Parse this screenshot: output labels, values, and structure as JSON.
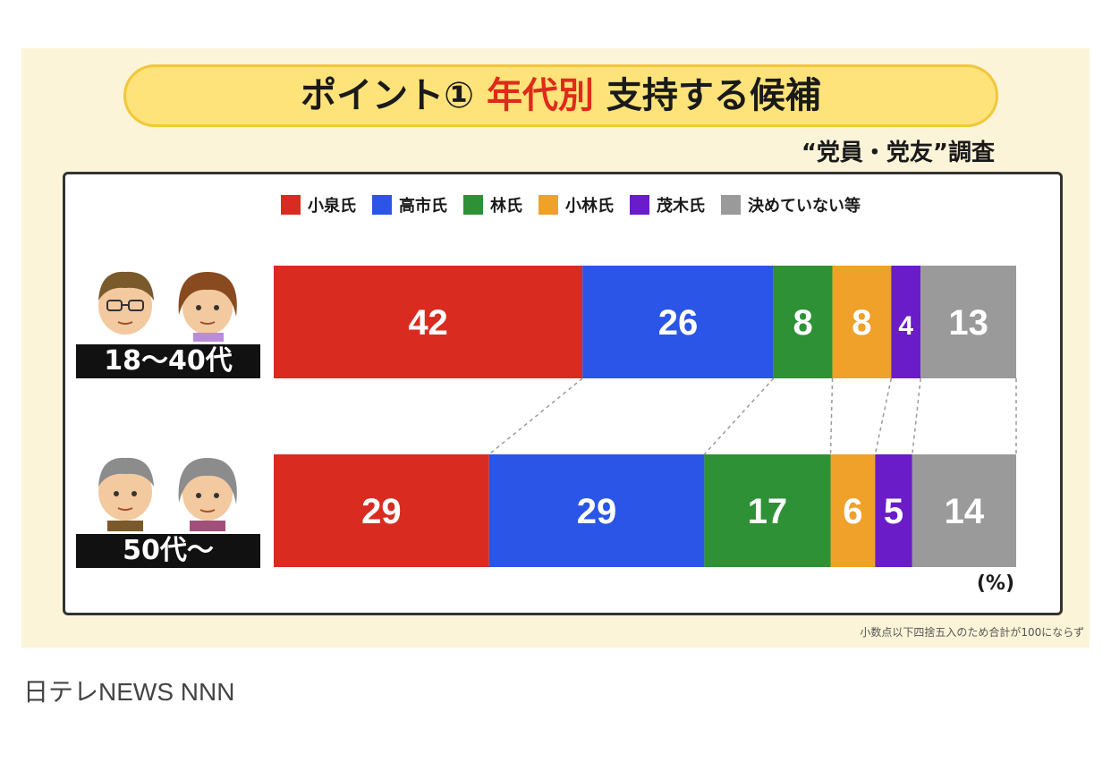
{
  "title": {
    "part1": "ポイント①",
    "highlight": "年代別",
    "part2": "支持する候補"
  },
  "subtitle": "“党員・党友”調査",
  "unit": "(%)",
  "footnote": "小数点以下四捨五入のため合計が100にならず",
  "caption": "日テレNEWS NNN",
  "chart_data": {
    "type": "bar",
    "orientation": "horizontal-stacked",
    "categories": [
      "18〜40代",
      "50代〜"
    ],
    "series": [
      {
        "name": "小泉氏",
        "color": "#d92b1f",
        "values": [
          42,
          29
        ]
      },
      {
        "name": "高市氏",
        "color": "#2b55e6",
        "values": [
          26,
          29
        ]
      },
      {
        "name": "林氏",
        "color": "#2e9135",
        "values": [
          8,
          17
        ]
      },
      {
        "name": "小林氏",
        "color": "#f0a12a",
        "values": [
          8,
          6
        ]
      },
      {
        "name": "茂木氏",
        "color": "#6a1cc8",
        "values": [
          4,
          5
        ]
      },
      {
        "name": "決めていない等",
        "color": "#9a9a9a",
        "values": [
          13,
          14
        ]
      }
    ],
    "legend": "top"
  }
}
